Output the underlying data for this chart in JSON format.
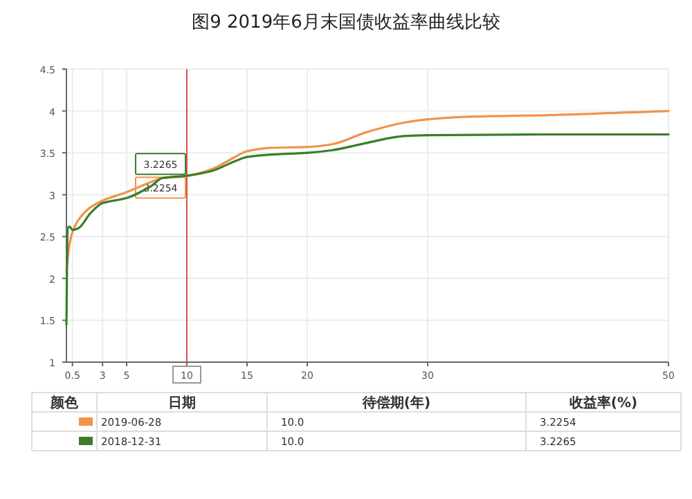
{
  "chart_data": {
    "type": "line",
    "title": "图9    2019年6月末国债收益率曲线比较",
    "xlim": [
      0,
      50
    ],
    "xticks": [
      0.5,
      3,
      5,
      10,
      15,
      20,
      30,
      50
    ],
    "ylim": [
      1,
      4.5
    ],
    "yticks": [
      1,
      1.5,
      2,
      2.5,
      3,
      3.5,
      4,
      4.5
    ],
    "grid": true,
    "legend": "bottom",
    "legend_title": "颜色",
    "marker": "none",
    "line_style": "solid",
    "ref_lines": [
      {
        "axis": "x",
        "value": 10,
        "color": "#d9534f"
      }
    ],
    "annotations": [
      "日期",
      "待偿期(年)",
      "收益率(%)",
      "10.0",
      "10.0"
    ],
    "series": [
      {
        "name": "2019-06-28",
        "color": "#f0934c",
        "x": [
          0,
          0.25,
          0.5,
          1,
          2,
          3,
          5,
          7,
          8,
          10,
          12,
          14,
          15,
          17,
          20,
          22,
          25,
          28,
          30,
          33,
          40,
          50
        ],
        "values": [
          2.1,
          2.4,
          2.55,
          2.7,
          2.85,
          2.93,
          3.03,
          3.15,
          3.2,
          3.2254,
          3.3,
          3.45,
          3.52,
          3.56,
          3.57,
          3.6,
          3.75,
          3.86,
          3.9,
          3.93,
          3.95,
          4.0
        ],
        "value_labels": [
          null,
          null,
          null,
          null,
          null,
          null,
          null,
          null,
          null,
          "3.2254",
          null,
          null,
          null,
          null,
          null,
          null,
          null,
          null,
          null,
          null,
          null,
          null
        ]
      },
      {
        "name": "2018-12-31",
        "color": "#3a7d2a",
        "x": [
          0,
          0.1,
          0.25,
          0.5,
          1,
          2,
          3,
          5,
          7,
          8,
          10,
          12,
          14,
          15,
          17,
          20,
          22,
          25,
          28,
          30,
          40,
          50
        ],
        "values": [
          1.45,
          2.6,
          2.62,
          2.58,
          2.6,
          2.78,
          2.9,
          2.96,
          3.1,
          3.2,
          3.2265,
          3.28,
          3.4,
          3.45,
          3.48,
          3.5,
          3.53,
          3.62,
          3.7,
          3.71,
          3.72,
          3.72
        ],
        "value_labels": [
          null,
          null,
          null,
          null,
          null,
          null,
          null,
          null,
          null,
          null,
          "3.2265",
          null,
          null,
          null,
          null,
          null,
          null,
          null,
          null,
          null,
          null,
          null
        ]
      }
    ]
  }
}
